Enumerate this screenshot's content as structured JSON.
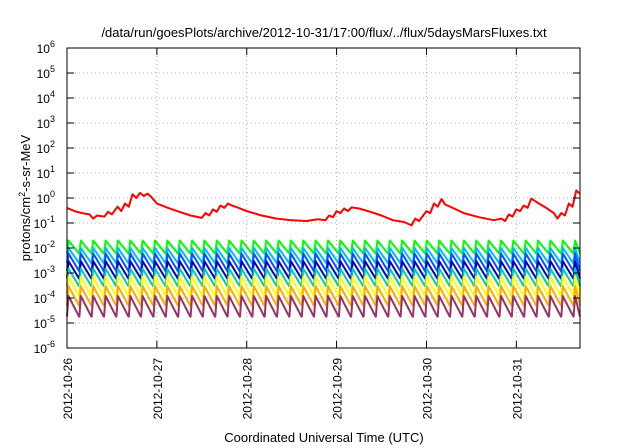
{
  "chart_data": {
    "type": "line",
    "title": "/data/run/goesPlots/archive/2012-10-31/17:00/flux/../flux/5daysMarsFluxes.txt",
    "xlabel": "Coordinated Universal Time (UTC)",
    "ylabel": {
      "base": "protons/cm",
      "sup": "2",
      "rest": "-s-sr-MeV"
    },
    "x_range": [
      "2012-10-26",
      "2012-10-31T17:00"
    ],
    "x_ticks": [
      "2012-10-26",
      "2012-10-27",
      "2012-10-28",
      "2012-10-29",
      "2012-10-30",
      "2012-10-31"
    ],
    "y_scale": "log",
    "ylim": [
      1e-06,
      1000000.0
    ],
    "y_ticks": [
      {
        "base": "10",
        "exp": "-6"
      },
      {
        "base": "10",
        "exp": "-5"
      },
      {
        "base": "10",
        "exp": "-4"
      },
      {
        "base": "10",
        "exp": "-3"
      },
      {
        "base": "10",
        "exp": "-2"
      },
      {
        "base": "10",
        "exp": "-1"
      },
      {
        "base": "10",
        "exp": "0"
      },
      {
        "base": "10",
        "exp": "1"
      },
      {
        "base": "10",
        "exp": "2"
      },
      {
        "base": "10",
        "exp": "3"
      },
      {
        "base": "10",
        "exp": "4"
      },
      {
        "base": "10",
        "exp": "5"
      },
      {
        "base": "10",
        "exp": "6"
      }
    ],
    "grid": true,
    "legend": "none",
    "series": [
      {
        "color": "#ff0000",
        "points": [
          [
            "2012-10-26T00:00",
            0.4
          ],
          [
            "2012-10-26T02:00",
            0.3
          ],
          [
            "2012-10-26T04:00",
            0.25
          ],
          [
            "2012-10-26T06:00",
            0.22
          ],
          [
            "2012-10-26T07:00",
            0.15
          ],
          [
            "2012-10-26T08:00",
            0.2
          ],
          [
            "2012-10-26T10:00",
            0.18
          ],
          [
            "2012-10-26T11:00",
            0.28
          ],
          [
            "2012-10-26T12:00",
            0.22
          ],
          [
            "2012-10-26T13:30",
            0.45
          ],
          [
            "2012-10-26T14:30",
            0.3
          ],
          [
            "2012-10-26T15:30",
            0.6
          ],
          [
            "2012-10-26T16:30",
            0.45
          ],
          [
            "2012-10-26T17:30",
            1.4
          ],
          [
            "2012-10-26T18:30",
            1.0
          ],
          [
            "2012-10-26T19:30",
            1.6
          ],
          [
            "2012-10-26T20:30",
            1.2
          ],
          [
            "2012-10-26T21:30",
            1.5
          ],
          [
            "2012-10-26T22:30",
            1.1
          ],
          [
            "2012-10-27T00:00",
            0.6
          ],
          [
            "2012-10-27T03:00",
            0.4
          ],
          [
            "2012-10-27T06:00",
            0.28
          ],
          [
            "2012-10-27T09:00",
            0.2
          ],
          [
            "2012-10-27T12:00",
            0.16
          ],
          [
            "2012-10-27T13:00",
            0.25
          ],
          [
            "2012-10-27T14:00",
            0.2
          ],
          [
            "2012-10-27T15:00",
            0.35
          ],
          [
            "2012-10-27T16:00",
            0.28
          ],
          [
            "2012-10-27T17:00",
            0.5
          ],
          [
            "2012-10-27T18:00",
            0.4
          ],
          [
            "2012-10-27T19:00",
            0.6
          ],
          [
            "2012-10-27T20:00",
            0.5
          ],
          [
            "2012-10-27T21:00",
            0.45
          ],
          [
            "2012-10-28T00:00",
            0.3
          ],
          [
            "2012-10-28T04:00",
            0.2
          ],
          [
            "2012-10-28T08:00",
            0.15
          ],
          [
            "2012-10-28T12:00",
            0.13
          ],
          [
            "2012-10-28T16:00",
            0.12
          ],
          [
            "2012-10-28T19:00",
            0.14
          ],
          [
            "2012-10-28T21:00",
            0.13
          ],
          [
            "2012-10-28T22:00",
            0.2
          ],
          [
            "2012-10-28T23:00",
            0.17
          ],
          [
            "2012-10-29T00:00",
            0.3
          ],
          [
            "2012-10-29T01:00",
            0.25
          ],
          [
            "2012-10-29T02:00",
            0.38
          ],
          [
            "2012-10-29T03:00",
            0.3
          ],
          [
            "2012-10-29T04:00",
            0.42
          ],
          [
            "2012-10-29T06:00",
            0.38
          ],
          [
            "2012-10-29T09:00",
            0.28
          ],
          [
            "2012-10-29T12:00",
            0.2
          ],
          [
            "2012-10-29T15:00",
            0.13
          ],
          [
            "2012-10-29T18:00",
            0.11
          ],
          [
            "2012-10-29T20:00",
            0.08
          ],
          [
            "2012-10-29T21:00",
            0.15
          ],
          [
            "2012-10-29T22:00",
            0.12
          ],
          [
            "2012-10-30T00:00",
            0.3
          ],
          [
            "2012-10-30T01:00",
            0.25
          ],
          [
            "2012-10-30T02:00",
            0.6
          ],
          [
            "2012-10-30T03:00",
            0.45
          ],
          [
            "2012-10-30T04:00",
            0.9
          ],
          [
            "2012-10-30T05:00",
            0.55
          ],
          [
            "2012-10-30T07:00",
            0.4
          ],
          [
            "2012-10-30T10:00",
            0.25
          ],
          [
            "2012-10-30T14:00",
            0.17
          ],
          [
            "2012-10-30T18:00",
            0.13
          ],
          [
            "2012-10-30T20:00",
            0.15
          ],
          [
            "2012-10-30T21:00",
            0.12
          ],
          [
            "2012-10-30T22:00",
            0.22
          ],
          [
            "2012-10-30T23:00",
            0.18
          ],
          [
            "2012-10-31T00:00",
            0.35
          ],
          [
            "2012-10-31T01:00",
            0.3
          ],
          [
            "2012-10-31T02:00",
            0.5
          ],
          [
            "2012-10-31T03:00",
            0.4
          ],
          [
            "2012-10-31T04:00",
            0.95
          ],
          [
            "2012-10-31T05:00",
            0.75
          ],
          [
            "2012-10-31T06:00",
            0.6
          ],
          [
            "2012-10-31T08:00",
            0.4
          ],
          [
            "2012-10-31T10:00",
            0.25
          ],
          [
            "2012-10-31T11:00",
            0.15
          ],
          [
            "2012-10-31T12:00",
            0.25
          ],
          [
            "2012-10-31T13:00",
            0.2
          ],
          [
            "2012-10-31T14:00",
            0.6
          ],
          [
            "2012-10-31T15:00",
            0.45
          ],
          [
            "2012-10-31T16:00",
            2.0
          ],
          [
            "2012-10-31T17:00",
            1.5
          ]
        ]
      },
      {
        "color": "#00ff00",
        "pattern": "sawtooth",
        "period_hours": 3.3,
        "high": 0.02,
        "low": 0.006
      },
      {
        "color": "#00bbff",
        "pattern": "sawtooth",
        "period_hours": 3.3,
        "high": 0.01,
        "low": 0.0025
      },
      {
        "color": "#0055ff",
        "pattern": "sawtooth",
        "period_hours": 3.3,
        "high": 0.006,
        "low": 0.0012
      },
      {
        "color": "#0000cc",
        "pattern": "sawtooth",
        "period_hours": 3.3,
        "high": 0.003,
        "low": 0.0006
      },
      {
        "color": "#00ccaa",
        "pattern": "sawtooth",
        "period_hours": 3.3,
        "high": 0.0015,
        "low": 0.0003
      },
      {
        "color": "#ffff00",
        "pattern": "sawtooth",
        "period_hours": 3.3,
        "high": 0.0007,
        "low": 0.00012
      },
      {
        "color": "#ffaa00",
        "pattern": "sawtooth",
        "period_hours": 3.3,
        "high": 0.0003,
        "low": 5e-05
      },
      {
        "color": "#993366",
        "pattern": "sawtooth",
        "period_hours": 3.3,
        "high": 0.00012,
        "low": 1.8e-05
      }
    ]
  }
}
